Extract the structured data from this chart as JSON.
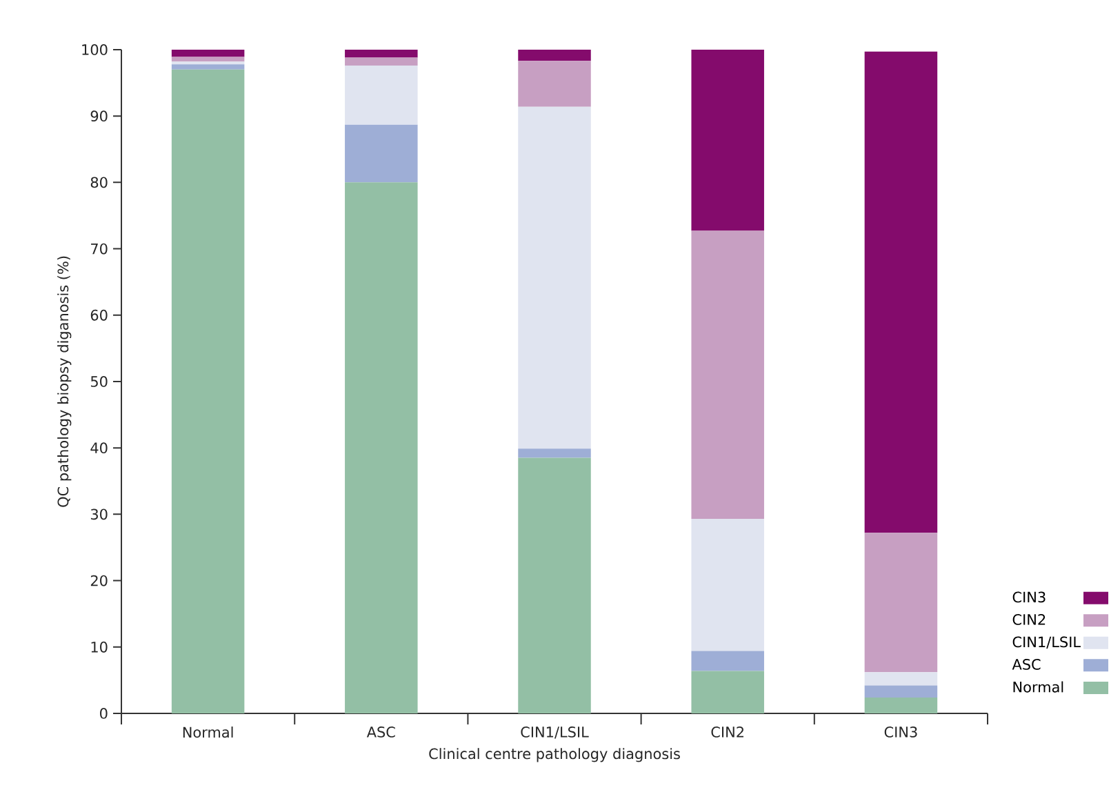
{
  "chart_data": {
    "type": "bar",
    "stacked": true,
    "xlabel": "Clinical centre pathology diagnosis",
    "ylabel": "QC pathology biopsy diganosis (%)",
    "categories": [
      "Normal",
      "ASC",
      "CIN1/LSIL",
      "CIN2",
      "CIN3"
    ],
    "ylim": [
      0,
      100
    ],
    "yticks": [
      0,
      10,
      20,
      30,
      40,
      50,
      60,
      70,
      80,
      90,
      100
    ],
    "legend": "right",
    "grid": false,
    "series": [
      {
        "name": "Normal",
        "color": "#93bfa5",
        "values": [
          97,
          80,
          38.5,
          6.4,
          2.4
        ]
      },
      {
        "name": "ASC",
        "color": "#9eaed6",
        "values": [
          0.8,
          8.7,
          1.4,
          3.0,
          1.8
        ]
      },
      {
        "name": "CIN1/LSIL",
        "color": "#e0e4f0",
        "values": [
          0.4,
          8.9,
          51.5,
          19.9,
          2.0
        ]
      },
      {
        "name": "CIN2",
        "color": "#c79fc2",
        "values": [
          0.7,
          1.2,
          6.9,
          43.4,
          21.0
        ]
      },
      {
        "name": "CIN3",
        "color": "#840b6c",
        "values": [
          1.1,
          1.2,
          1.7,
          27.3,
          72.5
        ]
      }
    ]
  }
}
